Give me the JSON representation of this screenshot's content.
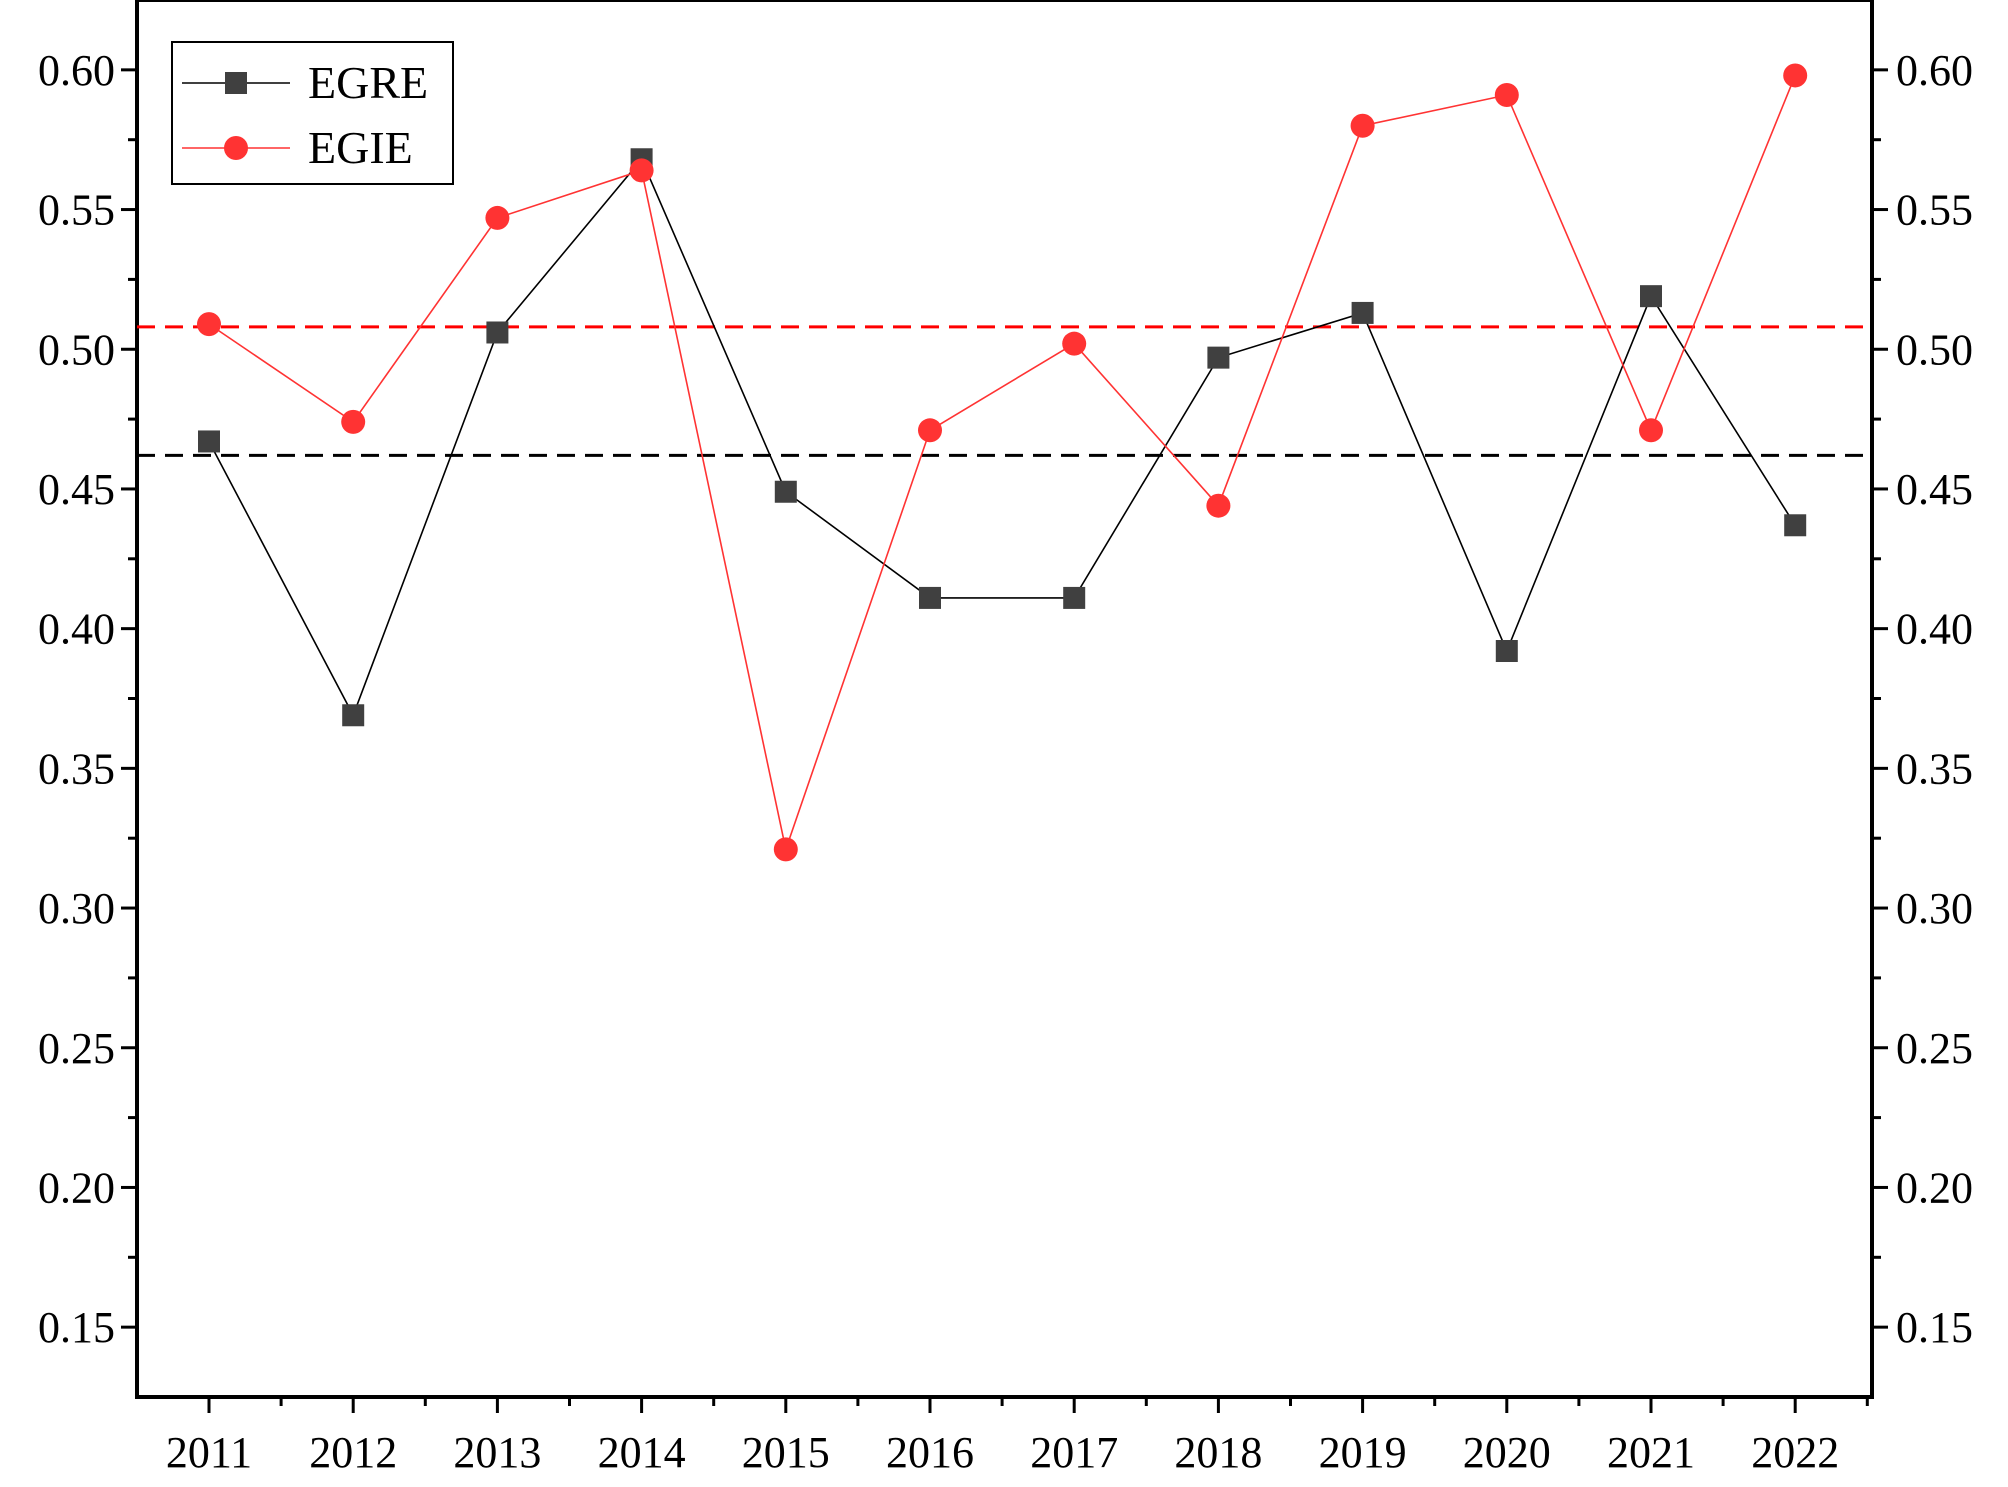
{
  "chart_data": {
    "type": "line",
    "title": "",
    "xlabel": "",
    "ylabel": "",
    "x": [
      "2011",
      "2012",
      "2013",
      "2014",
      "2015",
      "2016",
      "2017",
      "2018",
      "2019",
      "2020",
      "2021",
      "2022"
    ],
    "series": [
      {
        "name": "EGRE",
        "color": "#404040",
        "line_color": "#000000",
        "marker": "square",
        "values": [
          0.467,
          0.369,
          0.506,
          0.568,
          0.449,
          0.411,
          0.411,
          0.497,
          0.513,
          0.392,
          0.519,
          0.437
        ]
      },
      {
        "name": "EGIE",
        "color": "#ff3333",
        "line_color": "#ff3333",
        "marker": "circle",
        "values": [
          0.509,
          0.474,
          0.547,
          0.564,
          0.321,
          0.471,
          0.502,
          0.444,
          0.58,
          0.591,
          0.471,
          0.598
        ]
      }
    ],
    "reference_lines": [
      {
        "value": 0.508,
        "color": "#ff0000",
        "style": "dashed"
      },
      {
        "value": 0.462,
        "color": "#000000",
        "style": "dashed"
      }
    ],
    "ylim": [
      0.125,
      0.625
    ],
    "yticks": [
      "0.15",
      "0.20",
      "0.25",
      "0.30",
      "0.35",
      "0.40",
      "0.45",
      "0.50",
      "0.55",
      "0.60"
    ],
    "grid": false,
    "legend": "top-left",
    "right_axis_mirrored": true
  }
}
